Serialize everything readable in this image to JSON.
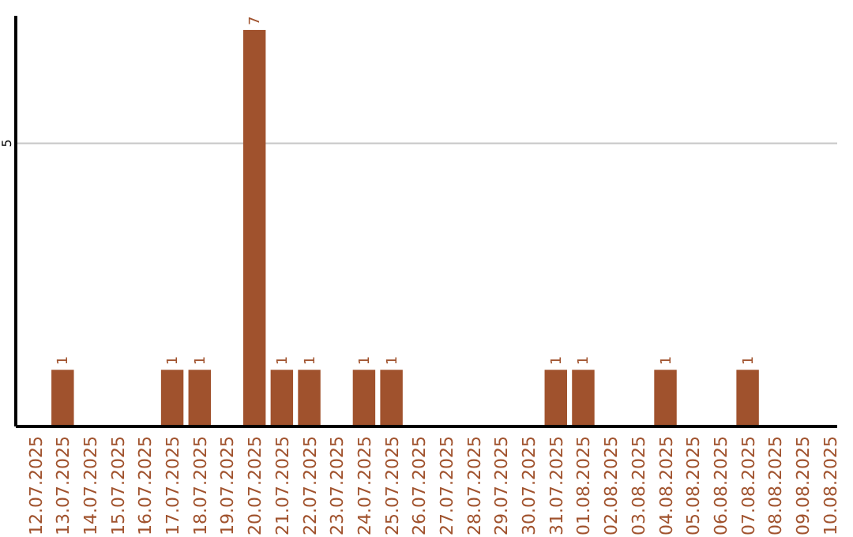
{
  "chart_data": {
    "type": "bar",
    "categories": [
      "12.07.2025",
      "13.07.2025",
      "14.07.2025",
      "15.07.2025",
      "16.07.2025",
      "17.07.2025",
      "18.07.2025",
      "19.07.2025",
      "20.07.2025",
      "21.07.2025",
      "22.07.2025",
      "23.07.2025",
      "24.07.2025",
      "25.07.2025",
      "26.07.2025",
      "27.07.2025",
      "28.07.2025",
      "29.07.2025",
      "30.07.2025",
      "31.07.2025",
      "01.08.2025",
      "02.08.2025",
      "03.08.2025",
      "04.08.2025",
      "05.08.2025",
      "06.08.2025",
      "07.08.2025",
      "08.08.2025",
      "09.08.2025",
      "10.08.2025"
    ],
    "values": [
      0,
      1,
      0,
      0,
      0,
      1,
      1,
      0,
      7,
      1,
      1,
      0,
      1,
      1,
      0,
      0,
      0,
      0,
      0,
      1,
      1,
      0,
      0,
      1,
      0,
      0,
      1,
      0,
      0,
      0
    ],
    "color": "#a0522d",
    "ylim": [
      0,
      7.25
    ],
    "yticks": [
      5
    ],
    "grid": "y",
    "value_labels": [
      null,
      "1",
      null,
      null,
      null,
      "1",
      "1",
      null,
      "7",
      "1",
      "1",
      null,
      "1",
      "1",
      null,
      null,
      null,
      null,
      null,
      "1",
      "1",
      null,
      null,
      "1",
      null,
      null,
      "1",
      null,
      null,
      null
    ]
  }
}
